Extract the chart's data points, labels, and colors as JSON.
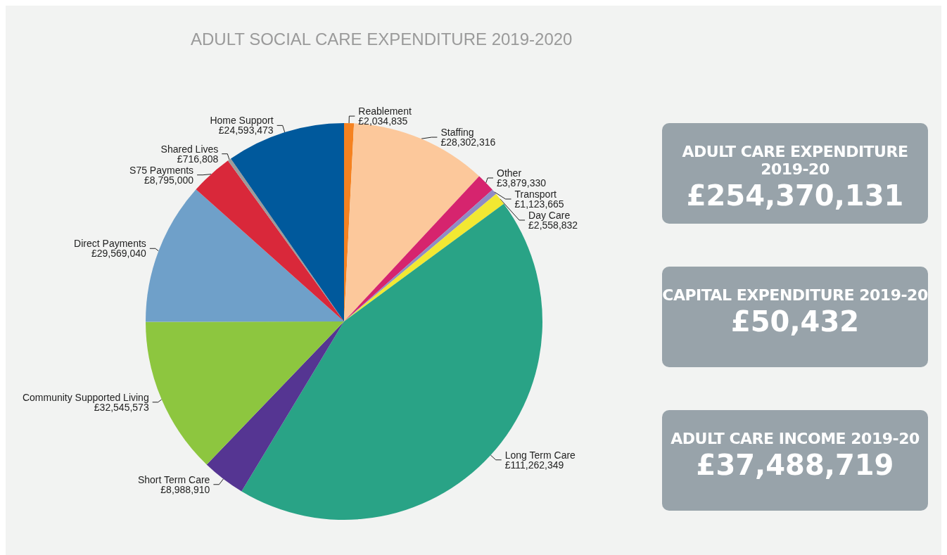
{
  "chart_data": [
    {
      "type": "pie",
      "title": "ADULT SOCIAL CARE EXPENDITURE 2019-2020",
      "categories": [
        "Reablement",
        "Staffing",
        "Other",
        "Transport",
        "Day Care",
        "Long Term Care",
        "Short Term Care",
        "Community Supported Living",
        "Direct Payments",
        "S75 Payments",
        "Shared Lives",
        "Home Support"
      ],
      "values": [
        2034835,
        28302316,
        3879330,
        1123665,
        2558832,
        111262349,
        8988910,
        32545573,
        29569040,
        8795000,
        716808,
        24593473
      ],
      "value_labels": [
        "£2,034,835",
        "£28,302,316",
        "£3,879,330",
        "£1,123,665",
        "£2,558,832",
        "£111,262,349",
        "£8,988,910",
        "£32,545,573",
        "£29,569,040",
        "£8,795,000",
        "£716,808",
        "£24,593,473"
      ],
      "colors": [
        "#f58220",
        "#fcc89b",
        "#d6246e",
        "#8e8cc5",
        "#f2e832",
        "#29a386",
        "#553592",
        "#8dc63f",
        "#6fa0c9",
        "#d9283a",
        "#9b9b9b",
        "#00599c"
      ],
      "legend": false
    },
    {
      "type": "other",
      "title": "ADULT CARE EXPENDITURE 2019-20",
      "annotations": [
        "£254,370,131"
      ]
    },
    {
      "type": "other",
      "title": "CAPITAL EXPENDITURE 2019-20",
      "annotations": [
        "£50,432"
      ]
    },
    {
      "type": "other",
      "title": "ADULT CARE INCOME 2019-20",
      "annotations": [
        "£37,488,719"
      ]
    }
  ]
}
